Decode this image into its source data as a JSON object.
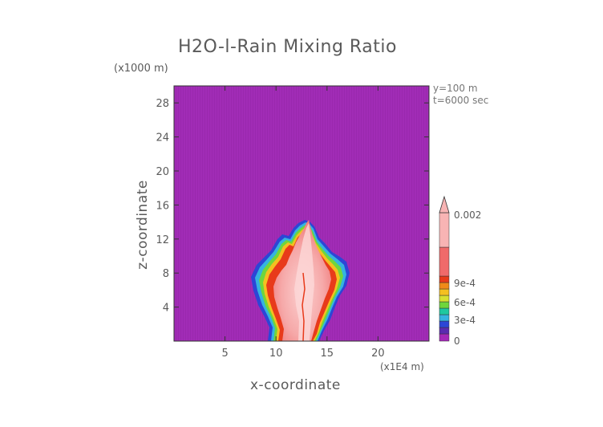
{
  "chart_data": {
    "type": "heatmap",
    "title": "H2O-l-Rain Mixing Ratio",
    "xlabel": "x-coordinate",
    "ylabel": "z-coordinate",
    "x_unit_label": "(x1E4 m)",
    "y_unit_label": "(x1000 m)",
    "annotations": [
      "y=100 m",
      "t=6000 sec"
    ],
    "xlim": [
      0,
      25
    ],
    "ylim": [
      0,
      30
    ],
    "x_ticks": [
      5,
      10,
      15,
      20
    ],
    "y_ticks": [
      4,
      8,
      12,
      16,
      20,
      24,
      28
    ],
    "colorbar": {
      "labels": [
        "0",
        "3e-4",
        "6e-4",
        "9e-4",
        "0.002"
      ],
      "levels": [
        {
          "value": 0,
          "color": "#a429b8"
        },
        {
          "value": 0.0001,
          "color": "#5a2bb0"
        },
        {
          "value": 0.0002,
          "color": "#2c46d6"
        },
        {
          "value": 0.0003,
          "color": "#35b3e0"
        },
        {
          "value": 0.0004,
          "color": "#1ec8a0"
        },
        {
          "value": 0.0005,
          "color": "#6fd63c"
        },
        {
          "value": 0.0006,
          "color": "#d8e030"
        },
        {
          "value": 0.0007,
          "color": "#f4c020"
        },
        {
          "value": 0.0008,
          "color": "#f08a18"
        },
        {
          "value": 0.0009,
          "color": "#e83a1a"
        },
        {
          "value": 0.001,
          "color": "#f06a6a"
        },
        {
          "value": 0.002,
          "color": "#f8b4b4"
        }
      ]
    },
    "field": {
      "description_values": "cloud of rain mixing ratio centered near x=13 (x1E4 m), extending from z=0 to z~14 (x1000 m), width x~8 to ~17",
      "core_max": 0.002,
      "background": 0
    }
  }
}
